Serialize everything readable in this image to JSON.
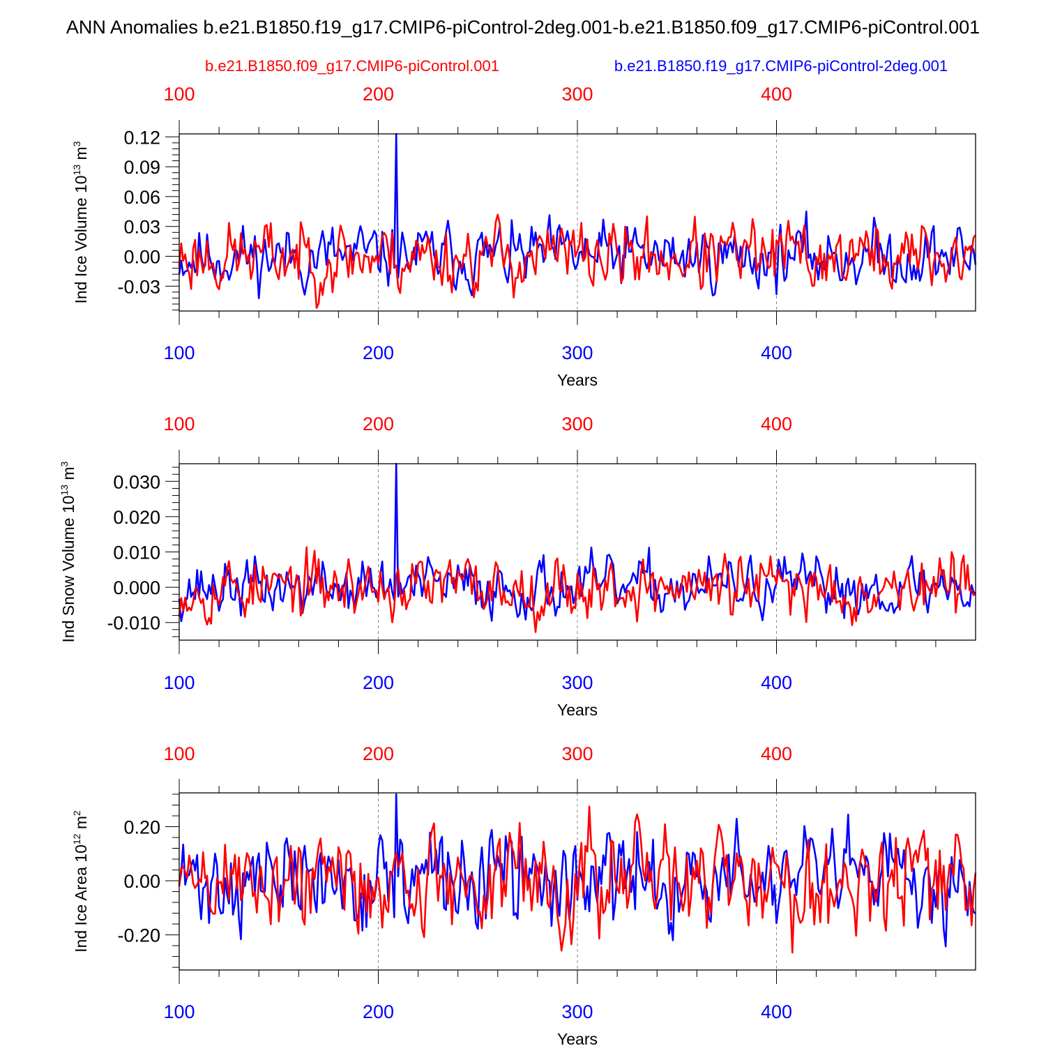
{
  "title": "ANN Anomalies b.e21.B1850.f19_g17.CMIP6-piControl-2deg.001-b.e21.B1850.f09_g17.CMIP6-piControl.001",
  "legend": {
    "red": "b.e21.B1850.f09_g17.CMIP6-piControl.001",
    "blue": "b.e21.B1850.f19_g17.CMIP6-piControl-2deg.001"
  },
  "colors": {
    "red": "#ff0000",
    "blue": "#0000ff",
    "axis": "#000000",
    "grid": "#888888"
  },
  "chart_data": [
    {
      "type": "line",
      "title": "",
      "ylabel": "Ind Ice Volume 10",
      "ylabel_exp": "13",
      "ylabel_unit": " m",
      "ylabel_unit_exp": "3",
      "xlabel": "Years",
      "xlim": [
        100,
        500
      ],
      "ylim": [
        -0.055,
        0.123
      ],
      "x_ticks": [
        100,
        200,
        300,
        400
      ],
      "x_tick_labels": [
        "100",
        "200",
        "300",
        "400"
      ],
      "y_ticks": [
        -0.03,
        0.0,
        0.03,
        0.06,
        0.09,
        0.12
      ],
      "y_tick_labels": [
        "-0.03",
        "0.00",
        "0.03",
        "0.06",
        "0.09",
        "0.12"
      ],
      "series": [
        {
          "name": "b.e21.B1850.f19_g17.CMIP6-piControl-2deg.001",
          "color": "blue",
          "spike": {
            "x": 209,
            "y": 0.123
          },
          "amp": 0.018,
          "seed": 11
        },
        {
          "name": "b.e21.B1850.f09_g17.CMIP6-piControl.001",
          "color": "red",
          "spike": null,
          "amp": 0.02,
          "seed": 23
        }
      ]
    },
    {
      "type": "line",
      "title": "",
      "ylabel": "Ind Snow Volume 10",
      "ylabel_exp": "13",
      "ylabel_unit": " m",
      "ylabel_unit_exp": "3",
      "xlabel": "Years",
      "xlim": [
        100,
        500
      ],
      "ylim": [
        -0.015,
        0.035
      ],
      "x_ticks": [
        100,
        200,
        300,
        400
      ],
      "x_tick_labels": [
        "100",
        "200",
        "300",
        "400"
      ],
      "y_ticks": [
        -0.01,
        0.0,
        0.01,
        0.02,
        0.03
      ],
      "y_tick_labels": [
        "-0.010",
        "0.000",
        "0.010",
        "0.020",
        "0.030"
      ],
      "series": [
        {
          "name": "b.e21.B1850.f19_g17.CMIP6-piControl-2deg.001",
          "color": "blue",
          "spike": {
            "x": 209,
            "y": 0.035
          },
          "amp": 0.0045,
          "seed": 37
        },
        {
          "name": "b.e21.B1850.f09_g17.CMIP6-piControl.001",
          "color": "red",
          "spike": null,
          "amp": 0.005,
          "seed": 53
        }
      ]
    },
    {
      "type": "line",
      "title": "",
      "ylabel": "Ind Ice Area 10",
      "ylabel_exp": "12",
      "ylabel_unit": " m",
      "ylabel_unit_exp": "2",
      "xlabel": "Years",
      "xlim": [
        100,
        500
      ],
      "ylim": [
        -0.33,
        0.325
      ],
      "x_ticks": [
        100,
        200,
        300,
        400
      ],
      "x_tick_labels": [
        "100",
        "200",
        "300",
        "400"
      ],
      "y_ticks": [
        -0.2,
        0.0,
        0.2
      ],
      "y_tick_labels": [
        "-0.20",
        "0.00",
        "0.20"
      ],
      "series": [
        {
          "name": "b.e21.B1850.f19_g17.CMIP6-piControl-2deg.001",
          "color": "blue",
          "spike": {
            "x": 209,
            "y": 0.32
          },
          "amp": 0.1,
          "seed": 71
        },
        {
          "name": "b.e21.B1850.f09_g17.CMIP6-piControl.001",
          "color": "red",
          "spike": null,
          "amp": 0.11,
          "seed": 89
        }
      ]
    }
  ]
}
